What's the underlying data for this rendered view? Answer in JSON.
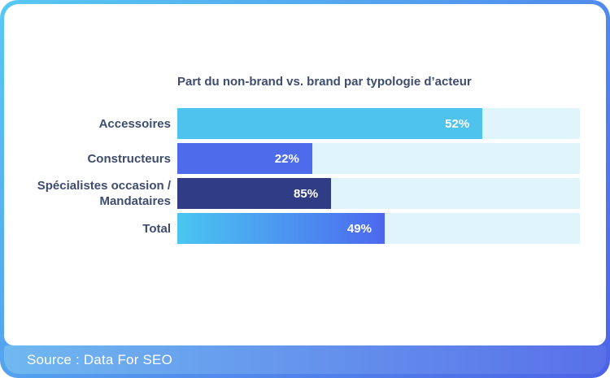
{
  "card": {
    "title": "Part du non-brand vs. brand par typologie d’acteur"
  },
  "footer": {
    "source_label": "Source : Data For SEO"
  },
  "colors": {
    "border_gradient_start": "#58C9F3",
    "border_gradient_end": "#4D63E8",
    "footer_gradient_start": "#70B8F0",
    "footer_gradient_end": "#5970E9",
    "title_text": "#3D4C6F",
    "track": "#E0F4FB",
    "bar_accessoires": "#4EC3EE",
    "bar_constructeurs": "#4D6BEB",
    "bar_specialistes": "#303C85",
    "bar_total_gradient_start": "#4AC6F0",
    "bar_total_gradient_end": "#4D68EF"
  },
  "chart_data": {
    "type": "bar",
    "orientation": "horizontal",
    "title": "Part du non-brand vs. brand par typologie d’acteur",
    "unit": "%",
    "categories": [
      "Accessoires",
      "Constructeurs",
      "Spécialistes occasion / Mandataires",
      "Total"
    ],
    "values": [
      52,
      22,
      85,
      49
    ],
    "value_labels": [
      "52%",
      "22%",
      "85%",
      "49%"
    ],
    "xlabel": "",
    "ylabel": "",
    "grid": false,
    "legend": false,
    "note": "Bar lengths as drawn are not proportional to the labeled percentages",
    "rows": [
      {
        "label": "Accessoires",
        "value": 52,
        "value_label": "52%",
        "display_width_pct": 75.8,
        "fill": "#4EC3EE"
      },
      {
        "label": "Constructeurs",
        "value": 22,
        "value_label": "22%",
        "display_width_pct": 33.5,
        "fill": "#4D6BEB"
      },
      {
        "label": "Spécialistes occasion /\nMandataires",
        "value": 85,
        "value_label": "85%",
        "display_width_pct": 38.2,
        "fill": "#303C85"
      },
      {
        "label": "Total",
        "value": 49,
        "value_label": "49%",
        "display_width_pct": 51.5,
        "fill": "linear-gradient(90deg, #4AC6F0 0%, #4D68EF 100%)"
      }
    ]
  }
}
